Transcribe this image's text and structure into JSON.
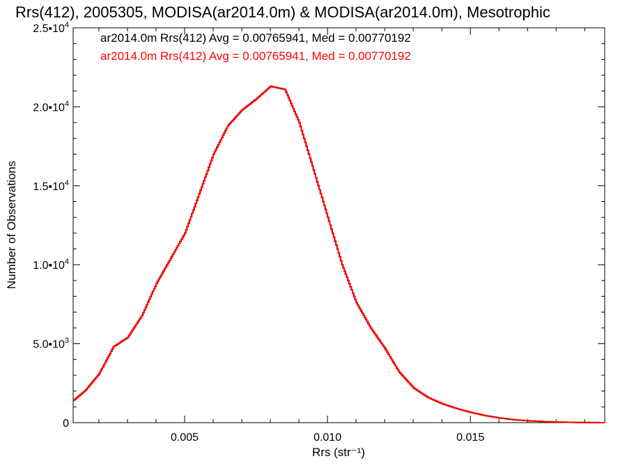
{
  "chart_data": {
    "type": "line",
    "title": "Rrs(412), 2005305, MODISA(ar2014.0m) & MODISA(ar2014.0m), Mesotrophic",
    "xlabel": "Rrs (str⁻¹)",
    "ylabel": "Number of Observations",
    "xlim": [
      0.0011,
      0.0197
    ],
    "ylim": [
      0,
      25000
    ],
    "x_ticks": [
      0.005,
      0.01,
      0.015
    ],
    "x_tick_labels": [
      "0.005",
      "0.010",
      "0.015"
    ],
    "y_ticks": [
      0,
      5000,
      10000,
      15000,
      20000,
      25000
    ],
    "y_tick_labels": [
      {
        "mantissa": "0",
        "exponent": ""
      },
      {
        "mantissa": "5.0•10",
        "exponent": "3"
      },
      {
        "mantissa": "1.0•10",
        "exponent": "4"
      },
      {
        "mantissa": "1.5•10",
        "exponent": "4"
      },
      {
        "mantissa": "2.0•10",
        "exponent": "4"
      },
      {
        "mantissa": "2.5•10",
        "exponent": "4"
      }
    ],
    "grid": false,
    "legend_position": "top-left",
    "series": [
      {
        "name": "ar2014.0m Rrs(412) Avg = 0.00765941, Med = 0.00770192",
        "color": "#000000",
        "points": [
          [
            0.0011,
            1400
          ],
          [
            0.0015,
            2000
          ],
          [
            0.002,
            3100
          ],
          [
            0.0025,
            4800
          ],
          [
            0.003,
            5400
          ],
          [
            0.0035,
            6800
          ],
          [
            0.004,
            8800
          ],
          [
            0.0045,
            10400
          ],
          [
            0.005,
            12000
          ],
          [
            0.0055,
            14500
          ],
          [
            0.006,
            17000
          ],
          [
            0.0065,
            18800
          ],
          [
            0.007,
            19800
          ],
          [
            0.0075,
            20500
          ],
          [
            0.008,
            21300
          ],
          [
            0.0085,
            21100
          ],
          [
            0.009,
            19000
          ],
          [
            0.0095,
            16000
          ],
          [
            0.01,
            13000
          ],
          [
            0.0105,
            10000
          ],
          [
            0.011,
            7600
          ],
          [
            0.0115,
            6000
          ],
          [
            0.012,
            4700
          ],
          [
            0.0125,
            3200
          ],
          [
            0.013,
            2200
          ],
          [
            0.0135,
            1600
          ],
          [
            0.014,
            1200
          ],
          [
            0.0145,
            900
          ],
          [
            0.015,
            650
          ],
          [
            0.0155,
            450
          ],
          [
            0.016,
            300
          ],
          [
            0.0165,
            190
          ],
          [
            0.017,
            120
          ],
          [
            0.0175,
            70
          ],
          [
            0.018,
            40
          ],
          [
            0.0185,
            20
          ],
          [
            0.019,
            8
          ],
          [
            0.0197,
            0
          ]
        ]
      },
      {
        "name": "ar2014.0m Rrs(412) Avg = 0.00765941, Med = 0.00770192",
        "color": "#ff0000",
        "points": [
          [
            0.0011,
            1400
          ],
          [
            0.0015,
            2000
          ],
          [
            0.002,
            3100
          ],
          [
            0.0025,
            4800
          ],
          [
            0.003,
            5400
          ],
          [
            0.0035,
            6800
          ],
          [
            0.004,
            8800
          ],
          [
            0.0045,
            10400
          ],
          [
            0.005,
            12000
          ],
          [
            0.0055,
            14500
          ],
          [
            0.006,
            17000
          ],
          [
            0.0065,
            18800
          ],
          [
            0.007,
            19800
          ],
          [
            0.0075,
            20500
          ],
          [
            0.008,
            21300
          ],
          [
            0.0085,
            21100
          ],
          [
            0.009,
            19000
          ],
          [
            0.0095,
            16000
          ],
          [
            0.01,
            13000
          ],
          [
            0.0105,
            10000
          ],
          [
            0.011,
            7600
          ],
          [
            0.0115,
            6000
          ],
          [
            0.012,
            4700
          ],
          [
            0.0125,
            3200
          ],
          [
            0.013,
            2200
          ],
          [
            0.0135,
            1600
          ],
          [
            0.014,
            1200
          ],
          [
            0.0145,
            900
          ],
          [
            0.015,
            650
          ],
          [
            0.0155,
            450
          ],
          [
            0.016,
            300
          ],
          [
            0.0165,
            190
          ],
          [
            0.017,
            120
          ],
          [
            0.0175,
            70
          ],
          [
            0.018,
            40
          ],
          [
            0.0185,
            20
          ],
          [
            0.019,
            8
          ],
          [
            0.0197,
            0
          ]
        ]
      }
    ]
  }
}
